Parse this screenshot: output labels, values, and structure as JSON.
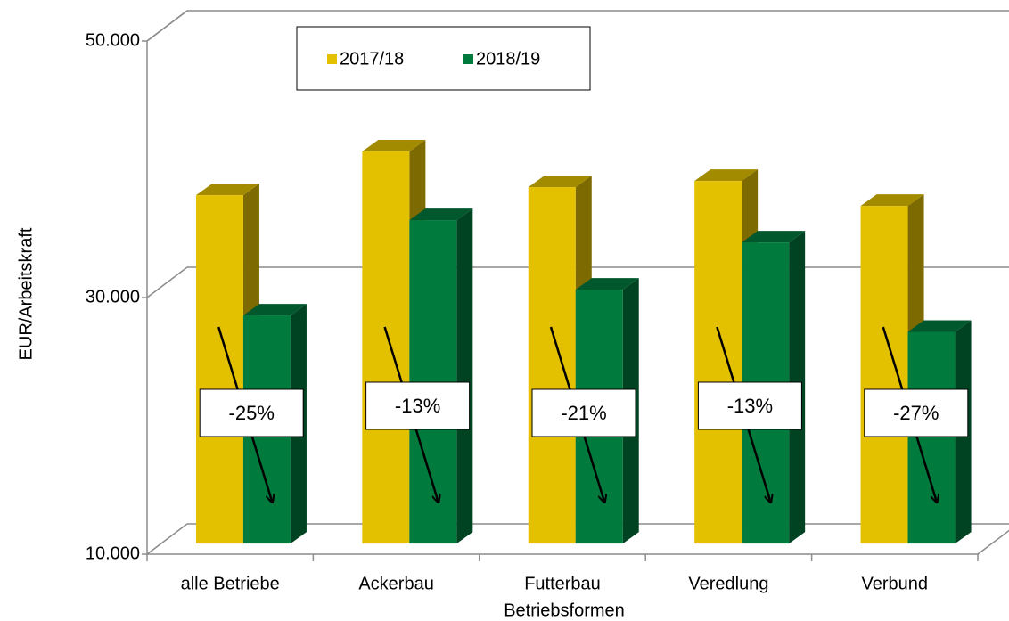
{
  "chart_data": {
    "type": "bar3d",
    "xlabel": "Betriebsformen",
    "ylabel": "EUR/Arbeitskraft",
    "categories": [
      "alle Betriebe",
      "Ackerbau",
      "Futterbau",
      "Veredlung",
      "Verbund"
    ],
    "series": [
      {
        "name": "2017/18",
        "color": "#e3c100",
        "values": [
          37150,
          40560,
          37780,
          38260,
          36320
        ]
      },
      {
        "name": "2018/19",
        "color": "#007a3d",
        "values": [
          27780,
          35210,
          29790,
          33470,
          26500
        ]
      }
    ],
    "ylim": [
      10000,
      50000
    ],
    "yticks": [
      {
        "value": 10000,
        "label": "10.000"
      },
      {
        "value": 30000,
        "label": "30.000"
      },
      {
        "value": 50000,
        "label": "50.000"
      }
    ],
    "grid": true,
    "annotations": [
      "-25%",
      "-13%",
      "-21%",
      "-13%",
      "-27%"
    ]
  }
}
